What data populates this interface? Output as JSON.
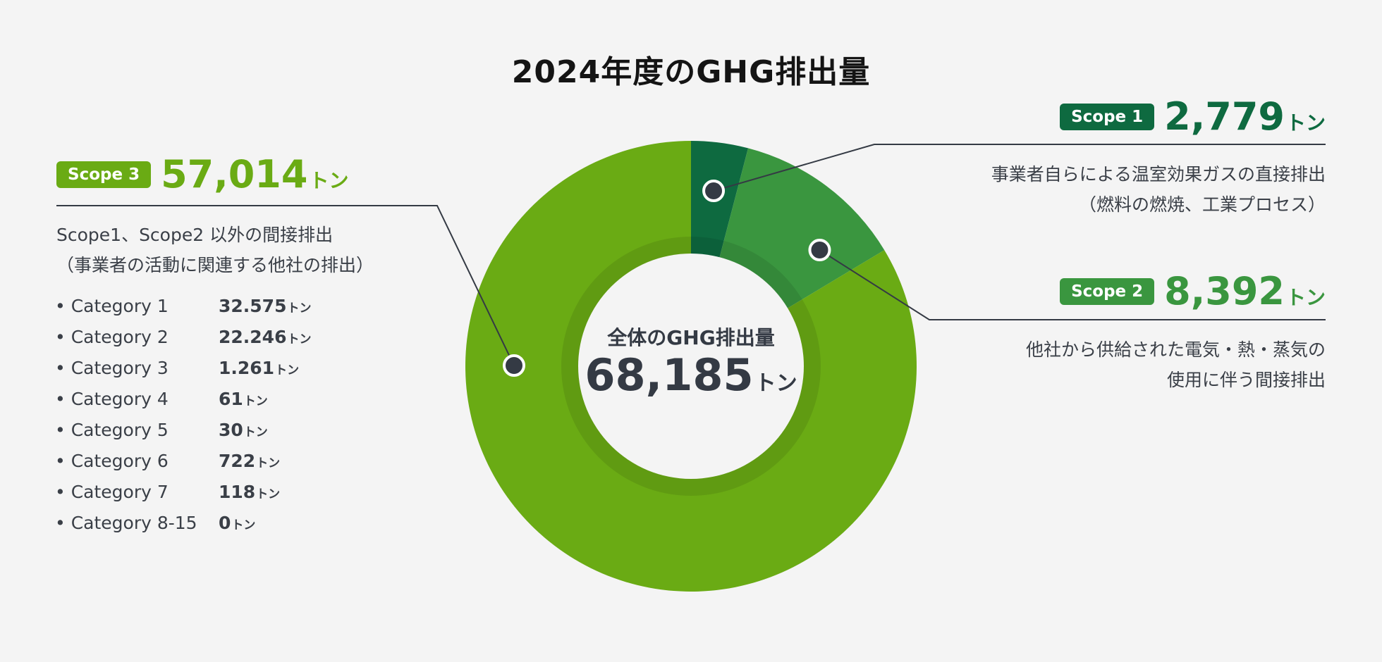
{
  "title": "2024年度のGHG排出量",
  "total": {
    "label": "全体のGHG排出量",
    "value": "68,185",
    "unit": "トン"
  },
  "scope1": {
    "badge": "Scope 1",
    "value": "2,779",
    "unit": "トン",
    "desc": [
      "事業者自らによる温室効果ガスの直接排出",
      "（燃料の燃焼、工業プロセス）"
    ]
  },
  "scope2": {
    "badge": "Scope 2",
    "value": "8,392",
    "unit": "トン",
    "desc": [
      "他社から供給された電気・熱・蒸気の",
      "使用に伴う間接排出"
    ]
  },
  "scope3": {
    "badge": "Scope 3",
    "value": "57,014",
    "unit": "トン",
    "desc": [
      "Scope1、Scope2 以外の間接排出",
      "（事業者の活動に関連する他社の排出）"
    ],
    "categories": [
      {
        "name": "• Category 1",
        "value": "32.575",
        "unit": "トン"
      },
      {
        "name": "• Category 2",
        "value": "22.246",
        "unit": "トン"
      },
      {
        "name": "• Category 3",
        "value": "1.261",
        "unit": "トン"
      },
      {
        "name": "• Category 4",
        "value": "61",
        "unit": "トン"
      },
      {
        "name": "• Category 5",
        "value": "30",
        "unit": "トン"
      },
      {
        "name": "• Category 6",
        "value": "722",
        "unit": "トン"
      },
      {
        "name": "• Category 7",
        "value": "118",
        "unit": "トン"
      },
      {
        "name": "• Category 8-15",
        "value": "0",
        "unit": "トン"
      }
    ]
  },
  "colors": {
    "scope1": "#0e6a40",
    "scope2": "#3a963f",
    "scope3": "#6aab14",
    "leader": "#343a44"
  },
  "chart_data": {
    "type": "pie",
    "title": "2024年度のGHG排出量",
    "categories": [
      "Scope 1",
      "Scope 2",
      "Scope 3"
    ],
    "values": [
      2779,
      8392,
      57014
    ],
    "total": 68185,
    "unit": "トン",
    "donut": true
  }
}
